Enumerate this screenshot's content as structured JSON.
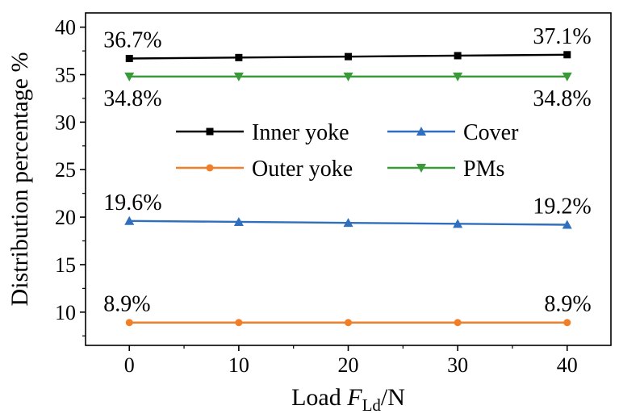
{
  "chart_data": {
    "type": "line",
    "x": [
      0,
      10,
      20,
      30,
      40
    ],
    "xlim": [
      -4,
      44
    ],
    "ylim": [
      6.5,
      41.5
    ],
    "xticks": [
      0,
      10,
      20,
      30,
      40
    ],
    "yticks": [
      10,
      15,
      20,
      25,
      30,
      35,
      40
    ],
    "xlabel": {
      "prefix": "Load ",
      "var": "F",
      "sub": "Ld",
      "suffix": "/N"
    },
    "ylabel": "Distribution  percentage  %",
    "legend_position": "upper-center",
    "series": [
      {
        "name": "Inner yoke",
        "color": "#000000",
        "marker": "square",
        "values": [
          36.7,
          36.8,
          36.9,
          37.0,
          37.1
        ]
      },
      {
        "name": "Cover",
        "color": "#2f6fbd",
        "marker": "triangle-up",
        "values": [
          19.6,
          19.5,
          19.4,
          19.3,
          19.2
        ]
      },
      {
        "name": "Outer yoke",
        "color": "#f07f28",
        "marker": "circle",
        "values": [
          8.9,
          8.9,
          8.9,
          8.9,
          8.9
        ]
      },
      {
        "name": "PMs",
        "color": "#3a9a3a",
        "marker": "triangle-down",
        "values": [
          34.8,
          34.8,
          34.8,
          34.8,
          34.8
        ]
      }
    ],
    "annotations": [
      {
        "text": "36.7%",
        "x": 0,
        "y": 36.7,
        "pos": "above"
      },
      {
        "text": "37.1%",
        "x": 40,
        "y": 37.1,
        "pos": "above"
      },
      {
        "text": "34.8%",
        "x": 0,
        "y": 34.8,
        "pos": "below"
      },
      {
        "text": "34.8%",
        "x": 40,
        "y": 34.8,
        "pos": "below"
      },
      {
        "text": "19.6%",
        "x": 0,
        "y": 19.6,
        "pos": "above"
      },
      {
        "text": "19.2%",
        "x": 40,
        "y": 19.2,
        "pos": "above"
      },
      {
        "text": "8.9%",
        "x": 0,
        "y": 8.9,
        "pos": "above"
      },
      {
        "text": "8.9%",
        "x": 40,
        "y": 8.9,
        "pos": "above"
      }
    ]
  }
}
